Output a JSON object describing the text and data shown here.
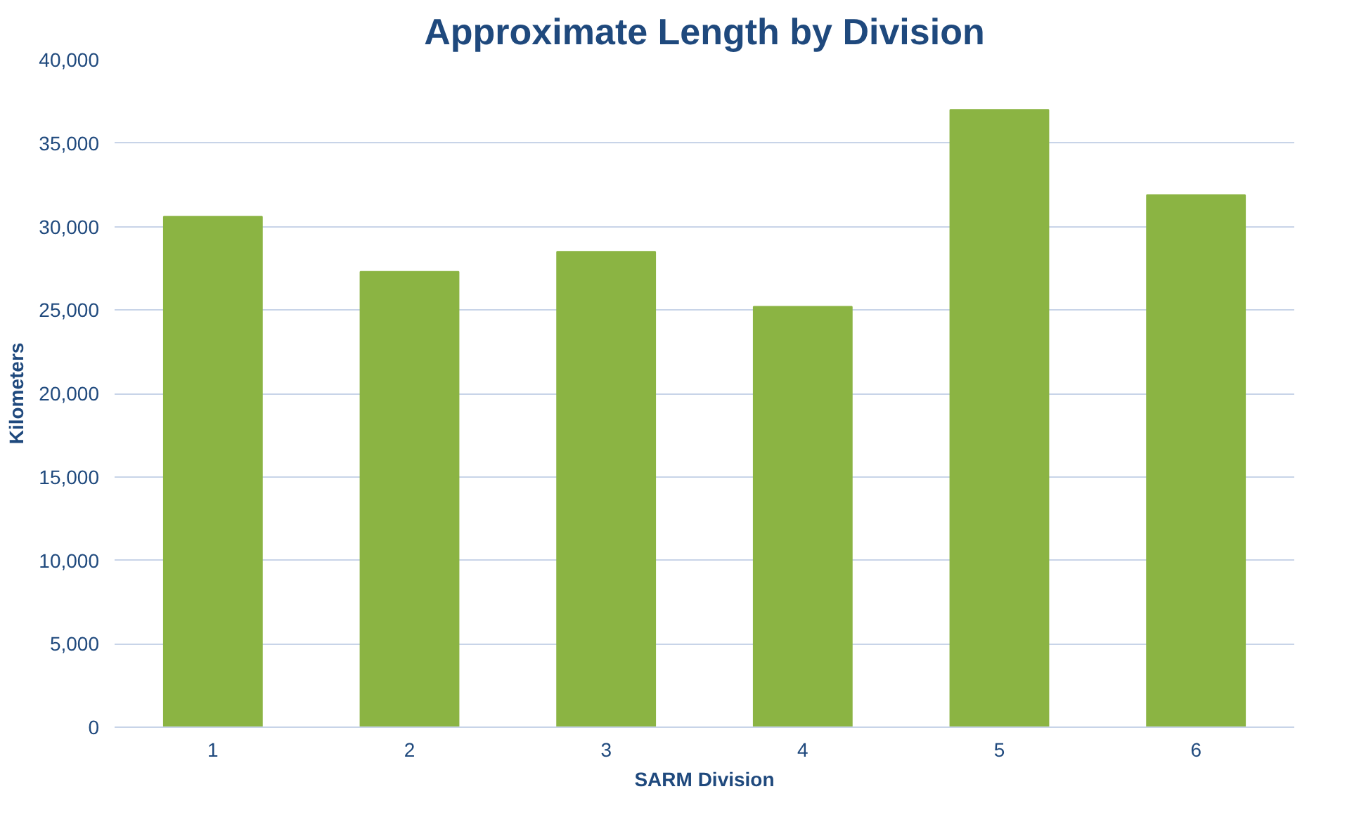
{
  "chart_data": {
    "type": "bar",
    "title": "Approximate Length by Division",
    "xlabel": "SARM Division",
    "ylabel": "Kilometers",
    "categories": [
      "1",
      "2",
      "3",
      "4",
      "5",
      "6"
    ],
    "values": [
      30600,
      27300,
      28500,
      25200,
      37000,
      31900
    ],
    "color": "#8bb443",
    "ylim": [
      0,
      40000
    ],
    "yticks": [
      {
        "value": 0,
        "label": "0"
      },
      {
        "value": 5000,
        "label": "5,000"
      },
      {
        "value": 10000,
        "label": "10,000"
      },
      {
        "value": 15000,
        "label": "15,000"
      },
      {
        "value": 20000,
        "label": "20,000"
      },
      {
        "value": 25000,
        "label": "25,000"
      },
      {
        "value": 30000,
        "label": "30,000"
      },
      {
        "value": 35000,
        "label": "35,000"
      },
      {
        "value": 40000,
        "label": "40,000"
      }
    ],
    "grid": "y"
  }
}
